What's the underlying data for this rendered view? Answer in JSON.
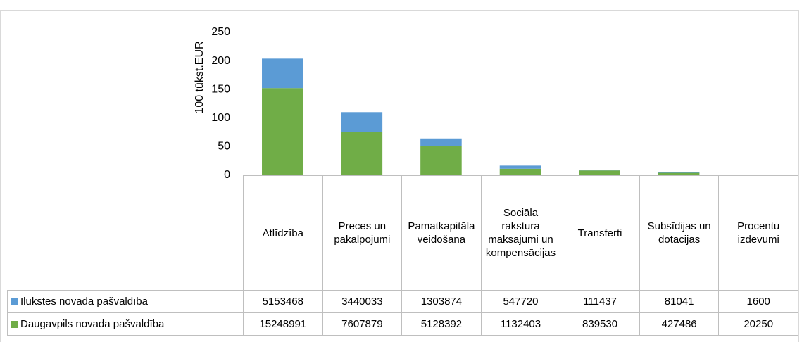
{
  "chart_data": {
    "type": "bar",
    "stacked": true,
    "ylabel": "100 tūkst.EUR",
    "categories": [
      "Atlīdzība",
      "Preces un pakalpojumi",
      "Pamatkapitāla veidošana",
      "Sociāla rakstura maksājumi un kompensācijas",
      "Transferti",
      "Subsīdijas un dotācijas",
      "Procentu izdevumi"
    ],
    "series": [
      {
        "name": "Daugavpils novada pašvaldība",
        "color": "#70ad47",
        "values": [
          152.48991,
          76.07879,
          51.28392,
          11.32403,
          8.3953,
          4.27486,
          0.2025
        ],
        "value_labels": [
          "15248991",
          "7607879",
          "5128392",
          "1132403",
          "839530",
          "427486",
          "20250"
        ]
      },
      {
        "name": "Ilūkstes novada pašvaldība",
        "color": "#5b9bd5",
        "values": [
          51.53468,
          34.40033,
          13.03874,
          5.4772,
          1.11437,
          0.81041,
          0.016
        ],
        "value_labels": [
          "5153468",
          "3440033",
          "1303874",
          "547720",
          "111437",
          "81041",
          "1600"
        ]
      }
    ],
    "ylim": [
      0,
      250
    ],
    "yticks": [
      0,
      50,
      100,
      150,
      200,
      250
    ]
  }
}
